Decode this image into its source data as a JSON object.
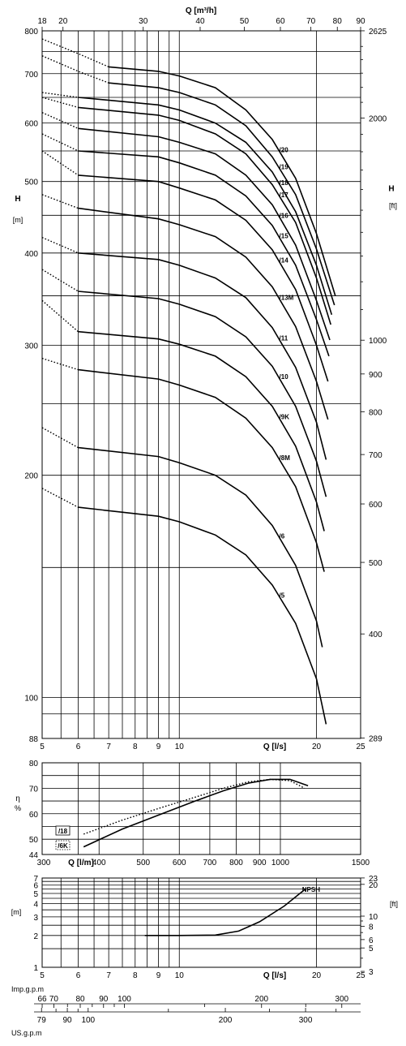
{
  "chart_data": [
    {
      "type": "line",
      "name": "head-chart",
      "xlabel": "Q [l/s]",
      "ylabel": "H",
      "ylabel_unit": "[m]",
      "y2label": "H",
      "y2label_unit": "[ft]",
      "top_axis_label": "Q [m³/h]",
      "x_scale": "log",
      "y_scale": "log",
      "xlim": [
        5,
        25
      ],
      "ylim": [
        88,
        800
      ],
      "x_ticks": [
        "5",
        "6",
        "7",
        "8",
        "9",
        "10",
        "20",
        "25"
      ],
      "y_ticks": [
        "88",
        "100",
        "200",
        "300",
        "400",
        "500",
        "600",
        "700",
        "800"
      ],
      "top_ticks": [
        "18",
        "20",
        "30",
        "40",
        "50",
        "60",
        "70",
        "80",
        "90"
      ],
      "right_ticks": [
        "289",
        "400",
        "500",
        "600",
        "700",
        "800",
        "900",
        "1000",
        "2000",
        "2625"
      ],
      "series": [
        {
          "name": "/20",
          "x": [
            5,
            6,
            7,
            9,
            10,
            12,
            14,
            16,
            18,
            20,
            22
          ],
          "y": [
            780,
            745,
            715,
            705,
            695,
            670,
            625,
            570,
            505,
            425,
            350
          ],
          "dotted_until_x": 7
        },
        {
          "name": "/19",
          "x": [
            5,
            6,
            7,
            9,
            10,
            12,
            14,
            16,
            18,
            20,
            21.9
          ],
          "y": [
            740,
            705,
            680,
            670,
            660,
            635,
            595,
            540,
            480,
            405,
            340
          ],
          "dotted_until_x": 7
        },
        {
          "name": "/18",
          "x": [
            5,
            6,
            9,
            10,
            12,
            14,
            16,
            18,
            20,
            21.6
          ],
          "y": [
            660,
            650,
            635,
            625,
            600,
            565,
            515,
            455,
            385,
            330
          ],
          "dotted_until_x": 6
        },
        {
          "name": "/17",
          "x": [
            5,
            6,
            9,
            10,
            12,
            14,
            16,
            18,
            20,
            21.5
          ],
          "y": [
            650,
            630,
            615,
            605,
            580,
            545,
            495,
            440,
            370,
            320
          ],
          "dotted_until_x": 6
        },
        {
          "name": "/16",
          "x": [
            5,
            6,
            9,
            10,
            12,
            14,
            16,
            18,
            20,
            21.4
          ],
          "y": [
            620,
            590,
            575,
            565,
            545,
            510,
            465,
            410,
            345,
            305
          ],
          "dotted_until_x": 6
        },
        {
          "name": "/15",
          "x": [
            5,
            6,
            9,
            10,
            12,
            14,
            16,
            18,
            20,
            21.3
          ],
          "y": [
            580,
            550,
            540,
            530,
            510,
            478,
            436,
            385,
            325,
            290
          ],
          "dotted_until_x": 6
        },
        {
          "name": "/14",
          "x": [
            5,
            6,
            9,
            10,
            12,
            14,
            16,
            18,
            20,
            21.2
          ],
          "y": [
            550,
            510,
            500,
            490,
            472,
            443,
            404,
            357,
            300,
            268
          ],
          "dotted_until_x": 6
        },
        {
          "name": "/13M",
          "x": [
            5,
            6,
            9,
            10,
            12,
            14,
            16,
            18,
            20,
            21.2
          ],
          "y": [
            480,
            460,
            445,
            437,
            421,
            395,
            360,
            318,
            268,
            238
          ],
          "dotted_until_x": 6
        },
        {
          "name": "/11",
          "x": [
            5,
            6,
            9,
            10,
            12,
            14,
            16,
            18,
            20,
            21
          ],
          "y": [
            420,
            400,
            392,
            385,
            370,
            348,
            317,
            280,
            236,
            210
          ],
          "dotted_until_x": 6
        },
        {
          "name": "/10",
          "x": [
            5,
            6,
            9,
            10,
            12,
            14,
            16,
            18,
            20,
            21
          ],
          "y": [
            380,
            355,
            347,
            341,
            328,
            308,
            281,
            248,
            209,
            187
          ],
          "dotted_until_x": 6
        },
        {
          "name": "/9K",
          "x": [
            5,
            6,
            9,
            10,
            12,
            14,
            16,
            18,
            20,
            20.8
          ],
          "y": [
            345,
            313,
            306,
            301,
            290,
            272,
            248,
            219,
            184,
            168
          ],
          "dotted_until_x": 6
        },
        {
          "name": "/8M",
          "x": [
            5,
            6,
            9,
            10,
            12,
            14,
            16,
            18,
            20,
            20.8
          ],
          "y": [
            288,
            278,
            270,
            265,
            255,
            239,
            218,
            193,
            162,
            148
          ],
          "dotted_until_x": 6
        },
        {
          "name": "/6",
          "x": [
            5,
            6,
            9,
            10,
            12,
            14,
            16,
            18,
            20,
            20.6
          ],
          "y": [
            232,
            218,
            212,
            208,
            200,
            188,
            171,
            151,
            127,
            117
          ],
          "dotted_until_x": 6
        },
        {
          "name": "/5",
          "x": [
            5,
            6,
            9,
            10,
            12,
            14,
            16,
            18,
            20,
            21
          ],
          "y": [
            192,
            181,
            176,
            173,
            166,
            156,
            142,
            126,
            106,
            92
          ],
          "dotted_until_x": 6
        }
      ]
    },
    {
      "type": "line",
      "name": "efficiency-chart",
      "xlabel": "Q [l/m]",
      "ylabel": "η",
      "ylabel_unit": "%",
      "x_scale": "log",
      "xlim": [
        300,
        1500
      ],
      "ylim": [
        44,
        80
      ],
      "x_ticks": [
        "300",
        "400",
        "500",
        "600",
        "700",
        "800",
        "900",
        "1000",
        "1500"
      ],
      "y_ticks": [
        "44",
        "50",
        "60",
        "70",
        "80"
      ],
      "series": [
        {
          "name": "/18",
          "style": "solid",
          "x": [
            370,
            450,
            550,
            650,
            750,
            850,
            950,
            1050,
            1150
          ],
          "y": [
            47,
            54,
            60,
            65,
            69,
            72,
            73.5,
            73.5,
            71
          ]
        },
        {
          "name": "/6K",
          "style": "dotted",
          "x": [
            370,
            450,
            550,
            650,
            750,
            850,
            950,
            1050,
            1130
          ],
          "y": [
            52,
            57.5,
            62.5,
            66.5,
            70,
            72.5,
            73.5,
            73,
            70
          ]
        }
      ]
    },
    {
      "type": "line",
      "name": "npsh-chart",
      "xlabel": "Q [l/s]",
      "ylabel_unit": "[m]",
      "y2label_unit": "[ft]",
      "x_scale": "log",
      "y_scale": "log",
      "xlim": [
        5,
        25
      ],
      "ylim": [
        1,
        7
      ],
      "x_ticks": [
        "5",
        "6",
        "7",
        "8",
        "9",
        "10",
        "20",
        "25"
      ],
      "y_ticks": [
        "1",
        "2",
        "3",
        "4",
        "5",
        "6",
        "7"
      ],
      "right_ticks": [
        "3",
        "5",
        "6",
        "8",
        "10",
        "20",
        "23"
      ],
      "series": [
        {
          "name": "NPSH",
          "x": [
            8.4,
            10,
            12,
            13.5,
            15,
            17,
            19
          ],
          "y": [
            2,
            2,
            2.02,
            2.2,
            2.7,
            3.8,
            5.6
          ]
        }
      ]
    }
  ],
  "scales": {
    "imp_label": "Imp.g.p.m",
    "imp_ticks": [
      "66",
      "70",
      "80",
      "90",
      "100",
      "200",
      "300"
    ],
    "us_label": "US.g.p.m",
    "us_ticks": [
      "79",
      "90",
      "100",
      "200",
      "300"
    ]
  }
}
